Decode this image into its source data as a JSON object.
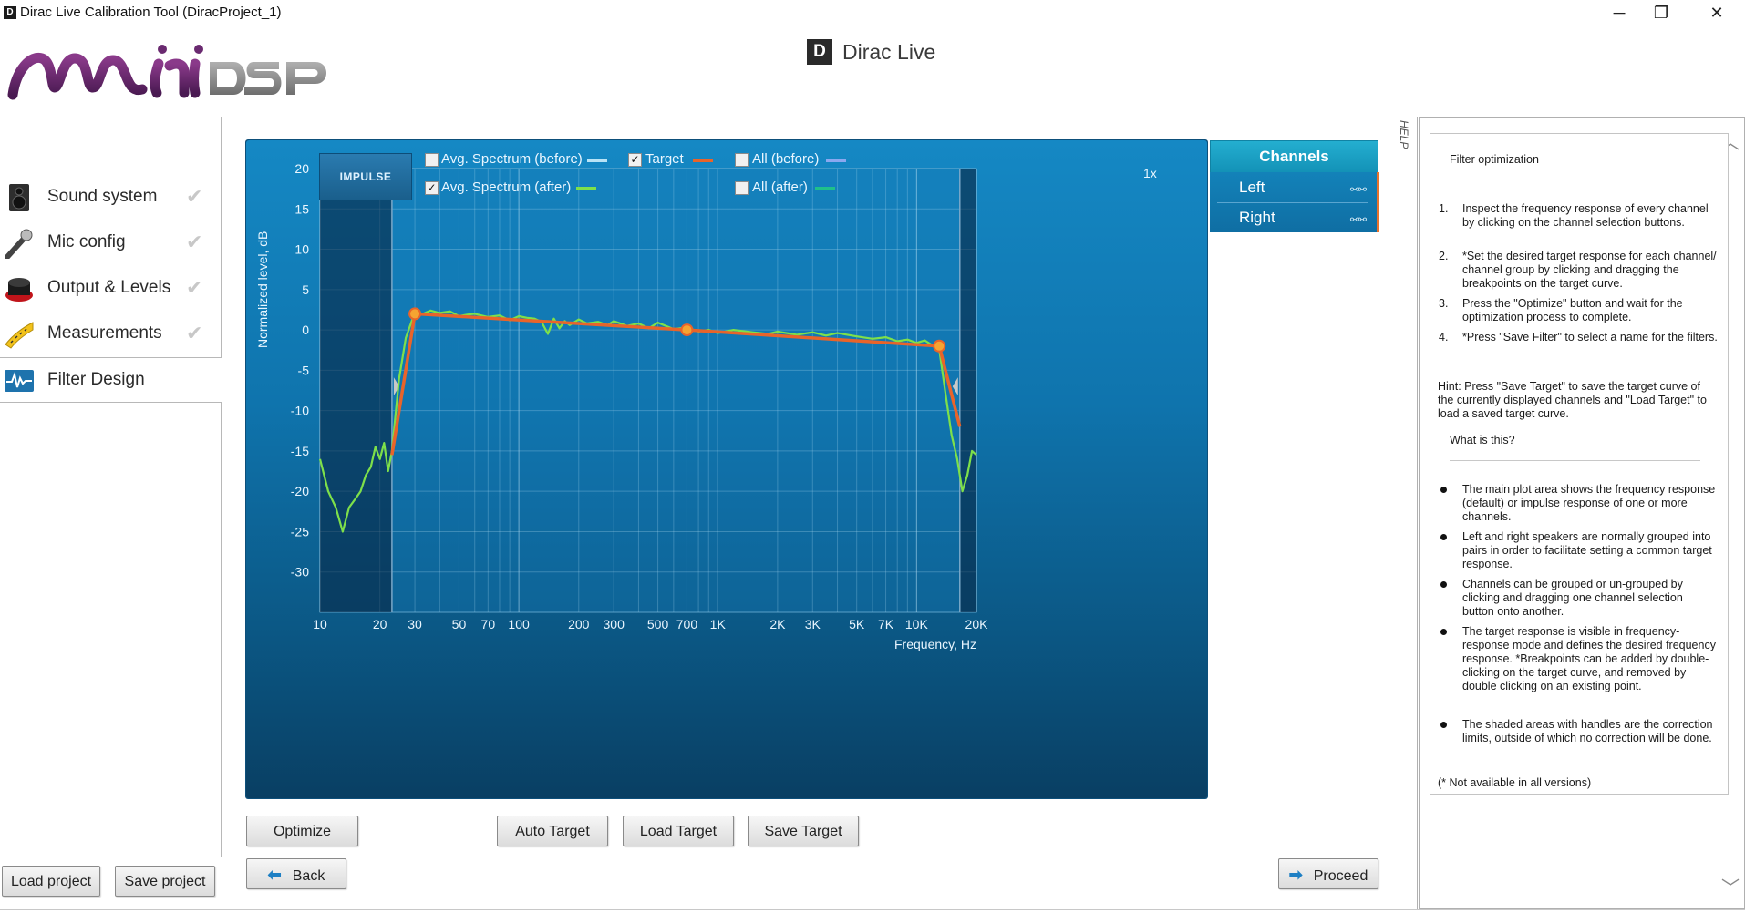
{
  "window": {
    "title": "Dirac Live Calibration Tool (DiracProject_1)",
    "app_icon": "D",
    "min_glyph": "─",
    "max_glyph": "❐",
    "close_glyph": "✕"
  },
  "brand": {
    "logo": "miniDSP",
    "product_mark": "D",
    "product_name": "Dirac Live"
  },
  "sidebar": {
    "items": [
      {
        "label": "Sound system",
        "icon": "speaker-icon",
        "check": "✔"
      },
      {
        "label": "Mic config",
        "icon": "microphone-icon",
        "check": "✔"
      },
      {
        "label": "Output & Levels",
        "icon": "level-knob-icon",
        "check": "✔"
      },
      {
        "label": "Measurements",
        "icon": "tape-measure-icon",
        "check": "✔"
      },
      {
        "label": "Filter Design",
        "icon": "waveform-icon",
        "active": true
      }
    ],
    "load_project": "Load project",
    "save_project": "Save project"
  },
  "plot": {
    "impulse_label": "IMPULSE",
    "zoom": "1x",
    "legend": [
      {
        "label": "Avg. Spectrum (before)",
        "checked": false,
        "color": "#b8e3f6"
      },
      {
        "label": "Target",
        "checked": true,
        "color": "#e8642a"
      },
      {
        "label": "All (before)",
        "checked": false,
        "color": "#8aa8f0"
      },
      {
        "label": "Avg. Spectrum (after)",
        "checked": true,
        "color": "#7ee04a"
      },
      {
        "label": "All (after)",
        "checked": false,
        "color": "#1fc08a"
      }
    ],
    "check_glyph": "✓",
    "y_axis_label": "Normalized level, dB",
    "x_axis_label": "Frequency, Hz",
    "y_ticks": [
      "20",
      "15",
      "10",
      "5",
      "0",
      "-5",
      "-10",
      "-15",
      "-20",
      "-25",
      "-30"
    ],
    "x_ticks": [
      "10",
      "20",
      "30",
      "50",
      "70",
      "100",
      "200",
      "300",
      "500",
      "700",
      "1K",
      "2K",
      "3K",
      "5K",
      "7K",
      "10K",
      "20K"
    ]
  },
  "chart_data": {
    "type": "line",
    "xlabel": "Frequency, Hz",
    "ylabel": "Normalized level, dB",
    "x_scale": "log",
    "xlim": [
      10,
      20000
    ],
    "ylim": [
      -35,
      20
    ],
    "grid": true,
    "legend_placement": "top",
    "correction_limits_hz": [
      23,
      16500
    ],
    "series": [
      {
        "name": "Target",
        "color": "#e8642a",
        "x": [
          23,
          30,
          700,
          13000,
          16500
        ],
        "y": [
          -15.5,
          2,
          0,
          -2,
          -12
        ],
        "breakpoints": [
          [
            30,
            2
          ],
          [
            700,
            0
          ],
          [
            13000,
            -2
          ]
        ]
      },
      {
        "name": "Avg. Spectrum (after)",
        "color": "#7ee04a",
        "x": [
          10,
          11,
          12,
          13,
          14,
          15,
          16,
          17,
          18,
          19,
          20,
          21,
          22,
          23,
          25,
          27,
          30,
          33,
          36,
          40,
          45,
          50,
          55,
          60,
          70,
          80,
          90,
          100,
          110,
          120,
          130,
          140,
          150,
          160,
          170,
          180,
          200,
          220,
          250,
          280,
          300,
          350,
          400,
          450,
          500,
          600,
          700,
          800,
          900,
          1000,
          1200,
          1500,
          1800,
          2000,
          2500,
          3000,
          3500,
          4000,
          5000,
          6000,
          7000,
          8000,
          9000,
          10000,
          11000,
          12000,
          13000,
          14000,
          15000,
          16000,
          17000,
          18000,
          19000,
          20000
        ],
        "y": [
          -16,
          -20,
          -22,
          -25,
          -22,
          -21,
          -20,
          -18,
          -17,
          -14.5,
          -16,
          -14,
          -17.5,
          -15,
          -6,
          -1,
          2.2,
          2,
          2.4,
          2.1,
          2.3,
          1.7,
          1.9,
          2.0,
          1.6,
          1.8,
          1.2,
          1.7,
          1.5,
          1.4,
          1.0,
          -0.5,
          1.4,
          0.2,
          1.1,
          0.6,
          1.3,
          0.8,
          1.0,
          0.6,
          1.1,
          0.5,
          0.8,
          0.2,
          0.9,
          0.1,
          0.3,
          -0.2,
          0.0,
          -0.4,
          0.0,
          -0.3,
          -0.5,
          -0.2,
          -0.6,
          -0.3,
          -0.7,
          -0.4,
          -0.8,
          -1.1,
          -0.9,
          -1.4,
          -1.2,
          -1.6,
          -1.3,
          -1.9,
          -2.4,
          -8,
          -13,
          -16,
          -20,
          -18,
          -15,
          -15.5
        ]
      }
    ]
  },
  "channels": {
    "header": "Channels",
    "items": [
      {
        "label": "Left",
        "linked": true
      },
      {
        "label": "Right",
        "linked": true
      }
    ],
    "link_glyph": "⚯⚯"
  },
  "actions": {
    "optimize": "Optimize",
    "auto_target": "Auto Target",
    "load_target": "Load Target",
    "save_target": "Save Target",
    "back": "Back",
    "proceed": "Proceed",
    "back_glyph": "⬅",
    "proceed_glyph": "➡"
  },
  "help": {
    "tab_label": "HELP",
    "scroll_up_glyph": "︿",
    "scroll_down_glyph": "﹀",
    "title": "Filter optimization",
    "steps": [
      {
        "num": "1.",
        "text": "Inspect the frequency response of every channel by clicking on the channel selection buttons."
      },
      {
        "num": "2.",
        "text": "*Set the desired target response for each channel/ channel group by clicking and dragging the breakpoints on the target curve."
      },
      {
        "num": "3.",
        "text": "Press the \"Optimize\" button and wait for the optimization process to complete."
      },
      {
        "num": "4.",
        "text": "*Press \"Save Filter\" to select a name for the filters."
      }
    ],
    "hint": "Hint: Press \"Save Target\" to save the target curve of the currently displayed channels and \"Load Target\" to load a saved target curve.",
    "what_is_this": "What is this?",
    "bullets": [
      "The main plot area shows the frequency response (default) or impulse response of one or more channels.",
      "Left and right speakers are normally grouped into pairs in order to facilitate setting a common target response.",
      "Channels can be grouped or un-grouped by clicking and dragging one channel selection button onto another.",
      "The target response is visible in frequency-response mode and defines the desired frequency response. *Breakpoints can be added by double-clicking on the target curve, and removed by double clicking on an existing point.",
      "The shaded areas with handles are the correction limits, outside of which no correction will be done."
    ],
    "footnote": "(* Not available in all versions)"
  }
}
